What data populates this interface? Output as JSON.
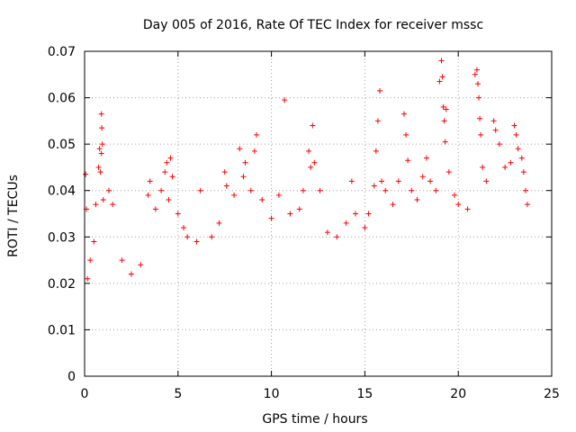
{
  "chart_data": {
    "type": "scatter",
    "title": "Day 005 of 2016, Rate Of TEC Index for receiver mssc",
    "xlabel": "GPS time / hours",
    "ylabel": "ROTI / TECUs",
    "xlim": [
      0,
      25
    ],
    "ylim": [
      0,
      0.07
    ],
    "xticks": [
      0,
      5,
      10,
      15,
      20,
      25
    ],
    "xtick_labels": [
      "0",
      "5",
      "10",
      "15",
      "20",
      "25"
    ],
    "yticks": [
      0,
      0.01,
      0.02,
      0.03,
      0.04,
      0.05,
      0.06,
      0.07
    ],
    "ytick_labels": [
      "0",
      "0.01",
      "0.02",
      "0.03",
      "0.04",
      "0.05",
      "0.06",
      "0.07"
    ],
    "grid": true,
    "marker": "+",
    "color": "#ff0000",
    "series": [
      {
        "name": "ROTI",
        "points": [
          [
            0.05,
            0.0435
          ],
          [
            0.1,
            0.036
          ],
          [
            0.15,
            0.021
          ],
          [
            0.3,
            0.025
          ],
          [
            0.5,
            0.029
          ],
          [
            0.6,
            0.037
          ],
          [
            0.75,
            0.045
          ],
          [
            0.8,
            0.049
          ],
          [
            0.85,
            0.044
          ],
          [
            0.9,
            0.048
          ],
          [
            0.95,
            0.05
          ],
          [
            0.9,
            0.0565
          ],
          [
            0.92,
            0.0535
          ],
          [
            1.0,
            0.038
          ],
          [
            1.3,
            0.04
          ],
          [
            1.5,
            0.037
          ],
          [
            2.0,
            0.025
          ],
          [
            2.5,
            0.022
          ],
          [
            3.0,
            0.024
          ],
          [
            3.4,
            0.039
          ],
          [
            3.5,
            0.042
          ],
          [
            3.8,
            0.036
          ],
          [
            4.1,
            0.04
          ],
          [
            4.3,
            0.044
          ],
          [
            4.4,
            0.046
          ],
          [
            4.6,
            0.047
          ],
          [
            4.5,
            0.038
          ],
          [
            4.7,
            0.043
          ],
          [
            5.0,
            0.035
          ],
          [
            5.3,
            0.032
          ],
          [
            5.5,
            0.03
          ],
          [
            6.0,
            0.029
          ],
          [
            6.2,
            0.04
          ],
          [
            6.8,
            0.03
          ],
          [
            7.2,
            0.033
          ],
          [
            7.5,
            0.044
          ],
          [
            7.6,
            0.041
          ],
          [
            8.0,
            0.039
          ],
          [
            8.3,
            0.049
          ],
          [
            8.5,
            0.043
          ],
          [
            8.6,
            0.046
          ],
          [
            8.9,
            0.04
          ],
          [
            9.1,
            0.0485
          ],
          [
            9.2,
            0.052
          ],
          [
            9.5,
            0.038
          ],
          [
            10.0,
            0.034
          ],
          [
            10.4,
            0.039
          ],
          [
            10.7,
            0.0595
          ],
          [
            11.0,
            0.035
          ],
          [
            11.5,
            0.036
          ],
          [
            11.7,
            0.04
          ],
          [
            12.0,
            0.0485
          ],
          [
            12.1,
            0.045
          ],
          [
            12.2,
            0.054
          ],
          [
            12.3,
            0.046
          ],
          [
            12.6,
            0.04
          ],
          [
            13.0,
            0.031
          ],
          [
            13.5,
            0.03
          ],
          [
            14.0,
            0.033
          ],
          [
            14.3,
            0.042
          ],
          [
            14.5,
            0.035
          ],
          [
            15.0,
            0.032
          ],
          [
            15.2,
            0.035
          ],
          [
            15.5,
            0.041
          ],
          [
            15.6,
            0.0485
          ],
          [
            15.7,
            0.055
          ],
          [
            15.8,
            0.0615
          ],
          [
            15.9,
            0.042
          ],
          [
            16.1,
            0.04
          ],
          [
            16.5,
            0.037
          ],
          [
            16.8,
            0.042
          ],
          [
            17.1,
            0.0565
          ],
          [
            17.2,
            0.052
          ],
          [
            17.3,
            0.0465
          ],
          [
            17.5,
            0.04
          ],
          [
            17.8,
            0.038
          ],
          [
            18.1,
            0.043
          ],
          [
            18.3,
            0.047
          ],
          [
            18.5,
            0.042
          ],
          [
            18.8,
            0.04
          ],
          [
            19.0,
            0.0635
          ],
          [
            19.1,
            0.068
          ],
          [
            19.15,
            0.0645
          ],
          [
            19.2,
            0.058
          ],
          [
            19.25,
            0.055
          ],
          [
            19.3,
            0.0505
          ],
          [
            19.35,
            0.0575
          ],
          [
            19.5,
            0.044
          ],
          [
            19.8,
            0.039
          ],
          [
            20.0,
            0.037
          ],
          [
            20.5,
            0.036
          ],
          [
            20.9,
            0.065
          ],
          [
            21.0,
            0.066
          ],
          [
            21.05,
            0.063
          ],
          [
            21.1,
            0.06
          ],
          [
            21.15,
            0.0555
          ],
          [
            21.2,
            0.052
          ],
          [
            21.3,
            0.045
          ],
          [
            21.5,
            0.042
          ],
          [
            21.9,
            0.055
          ],
          [
            22.0,
            0.053
          ],
          [
            22.2,
            0.05
          ],
          [
            22.5,
            0.045
          ],
          [
            22.8,
            0.046
          ],
          [
            23.0,
            0.054
          ],
          [
            23.1,
            0.052
          ],
          [
            23.2,
            0.049
          ],
          [
            23.4,
            0.047
          ],
          [
            23.5,
            0.044
          ],
          [
            23.6,
            0.04
          ],
          [
            23.7,
            0.037
          ]
        ]
      }
    ]
  }
}
